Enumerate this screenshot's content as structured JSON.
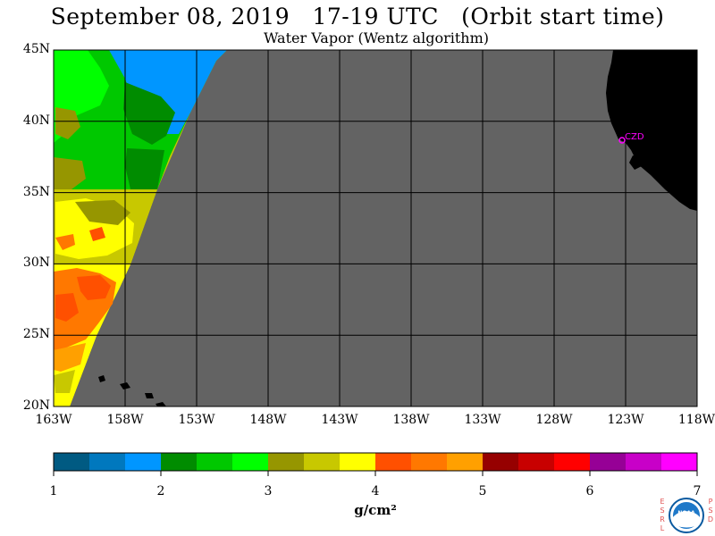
{
  "header": {
    "title": "September 08, 2019   17-19 UTC   (Orbit start time)",
    "subtitle": "Water Vapor (Wentz algorithm)"
  },
  "map": {
    "lat_labels": [
      "45N",
      "40N",
      "35N",
      "30N",
      "25N",
      "20N"
    ],
    "lon_labels": [
      "163W",
      "158W",
      "153W",
      "148W",
      "143W",
      "138W",
      "133W",
      "128W",
      "123W",
      "118W"
    ],
    "station_label": "CZD",
    "colors": {
      "no_data": "#636363",
      "land": "#000000",
      "grid": "#000000",
      "station": "#ff00ff"
    }
  },
  "colorbar": {
    "tick_labels": [
      "1",
      "2",
      "3",
      "4",
      "5",
      "6",
      "7"
    ],
    "unit": "g/cm²",
    "colors": [
      "#005a82",
      "#0078be",
      "#0096ff",
      "#008c00",
      "#00c800",
      "#00ff00",
      "#969600",
      "#c8c800",
      "#ffff00",
      "#ff5000",
      "#ff7800",
      "#ffa000",
      "#960000",
      "#c80000",
      "#ff0000",
      "#960096",
      "#c800c8",
      "#ff00ff"
    ]
  },
  "logo": {
    "left_letters": "ESRL",
    "right_letters": "PSD",
    "center_text": "NOAA"
  }
}
